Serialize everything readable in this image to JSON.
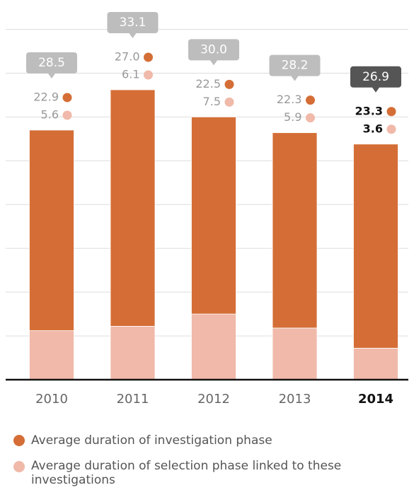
{
  "chart_data": {
    "type": "stacked_bar",
    "categories": [
      "2010",
      "2011",
      "2012",
      "2013",
      "2014"
    ],
    "series": [
      {
        "name": "Average duration of selection phase linked to these investigations",
        "color": "#f0b9a9",
        "values": [
          5.6,
          6.1,
          7.5,
          5.9,
          3.6
        ],
        "value_labels": [
          "5.6",
          "6.1",
          "7.5",
          "5.9",
          "3.6"
        ]
      },
      {
        "name": "Average duration of investigation phase",
        "color": "#d46e36",
        "values": [
          22.9,
          27.0,
          22.5,
          22.3,
          23.3
        ],
        "value_labels": [
          "22.9",
          "27.0",
          "22.5",
          "22.3",
          "23.3"
        ]
      }
    ],
    "totals": [
      28.5,
      33.1,
      30.0,
      28.2,
      26.9
    ],
    "total_labels": [
      "28.5",
      "33.1",
      "30.0",
      "28.2",
      "26.9"
    ],
    "ylim": [
      0,
      40
    ],
    "yticks": [
      0,
      5,
      10,
      15,
      20,
      25,
      30,
      35,
      40
    ],
    "grid": true
  }
}
